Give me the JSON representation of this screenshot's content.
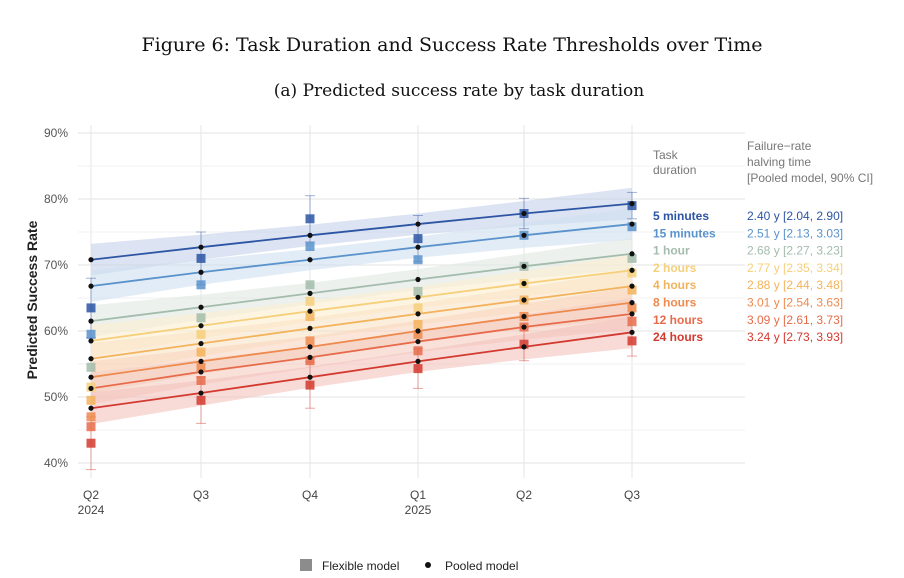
{
  "figure_title": "Figure 6: Task Duration and Success Rate Thresholds over Time",
  "chart_data": {
    "type": "line",
    "title": "(a) Predicted success rate by task duration",
    "ylabel": "Predicted Success Rate",
    "xlabel": "",
    "ylim": [
      38,
      92
    ],
    "yticks": [
      40,
      50,
      60,
      70,
      80,
      90
    ],
    "ytick_labels": [
      "40%",
      "50%",
      "60%",
      "70%",
      "80%",
      "90%"
    ],
    "categories": [
      "Q2",
      "Q3",
      "Q4",
      "Q1",
      "Q2",
      "Q3"
    ],
    "year_labels": [
      "2024",
      "",
      "",
      "2025",
      "",
      ""
    ],
    "legend_left_header": "Task duration",
    "legend_right_header": "Failure−rate halving time [Pooled model, 90% CI]",
    "legend_right_header_lines": [
      "Failure−rate",
      "halving time",
      "[Pooled model, 90% CI]"
    ],
    "legend_left_header_lines": [
      "Task",
      "duration"
    ],
    "bottom_legend": {
      "flexible": "Flexible model",
      "pooled": "Pooled model"
    },
    "series": [
      {
        "name": "5 minutes",
        "halving": "2.40 y [2.04, 2.90]",
        "color": "#2c55a4",
        "band": "#c5d1ea",
        "pooled": [
          70.8,
          72.7,
          74.5,
          76.2,
          77.8,
          79.3
        ],
        "flexible": [
          63.5,
          71.0,
          77.0,
          74.0,
          77.8,
          79.0
        ]
      },
      {
        "name": "15 minutes",
        "halving": "2.51 y [2.13, 3.03]",
        "color": "#5a93cc",
        "band": "#cfe0f0",
        "pooled": [
          66.8,
          68.9,
          70.8,
          72.7,
          74.5,
          76.2
        ],
        "flexible": [
          59.5,
          67.0,
          72.8,
          70.8,
          74.5,
          75.8
        ]
      },
      {
        "name": "1 hour",
        "halving": "2.68 y [2.27, 3.23]",
        "color": "#a3bcac",
        "band": "#e0e8e2",
        "pooled": [
          61.5,
          63.6,
          65.7,
          67.8,
          69.8,
          71.7
        ],
        "flexible": [
          54.5,
          62.0,
          67.0,
          66.0,
          69.8,
          71.0
        ]
      },
      {
        "name": "2 hours",
        "halving": "2.77 y [2.35, 3.34]",
        "color": "#f6cf7a",
        "band": "#fbefcf",
        "pooled": [
          58.5,
          60.8,
          63.0,
          65.1,
          67.2,
          69.2
        ],
        "flexible": [
          51.5,
          59.5,
          64.5,
          63.5,
          67.2,
          68.8
        ]
      },
      {
        "name": "4 hours",
        "halving": "2.88 y [2.44, 3.48]",
        "color": "#f3b35c",
        "band": "#fae3c4",
        "pooled": [
          55.8,
          58.1,
          60.4,
          62.6,
          64.7,
          66.8
        ],
        "flexible": [
          49.5,
          56.8,
          62.2,
          61.0,
          64.7,
          66.2
        ]
      },
      {
        "name": "8 hours",
        "halving": "3.01 y [2.54, 3.63]",
        "color": "#ee8a4e",
        "band": "#f8d6c0",
        "pooled": [
          53.0,
          55.4,
          57.6,
          60.0,
          62.2,
          64.3
        ],
        "flexible": [
          47.0,
          54.5,
          58.5,
          59.5,
          62.2,
          63.5
        ]
      },
      {
        "name": "12 hours",
        "halving": "3.09 y [2.61, 3.73]",
        "color": "#e76b4a",
        "band": "#f5cbbf",
        "pooled": [
          51.3,
          53.8,
          56.0,
          58.4,
          60.6,
          62.6
        ],
        "flexible": [
          45.5,
          52.5,
          55.5,
          57.0,
          60.6,
          61.5
        ]
      },
      {
        "name": "24 hours",
        "halving": "3.24 y [2.73, 3.93]",
        "color": "#d33a2f",
        "band": "#f3c2bd",
        "pooled": [
          48.3,
          50.6,
          53.0,
          55.4,
          57.6,
          59.8
        ],
        "flexible": [
          43.0,
          49.5,
          51.8,
          54.3,
          58.0,
          58.5
        ]
      }
    ]
  }
}
